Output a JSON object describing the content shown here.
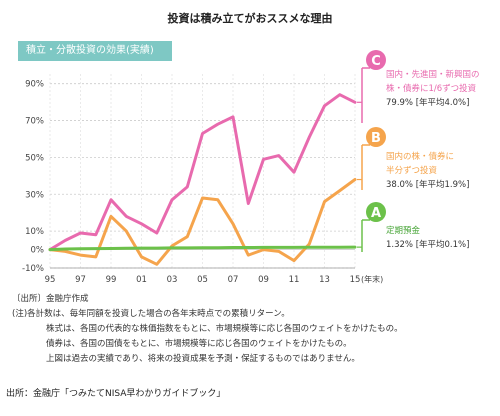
{
  "page_title": "投資は積み立てがおススメな理由",
  "chart_header": "積立・分散投資の効果(実績)",
  "chart_data": {
    "type": "line",
    "x": [
      1995,
      1996,
      1997,
      1998,
      1999,
      2000,
      2001,
      2002,
      2003,
      2004,
      2005,
      2006,
      2007,
      2008,
      2009,
      2010,
      2011,
      2012,
      2013,
      2014,
      2015
    ],
    "xtick_labels": [
      "95",
      "97",
      "99",
      "01",
      "03",
      "05",
      "07",
      "09",
      "11",
      "13",
      "15"
    ],
    "x_unit": "(年末)",
    "ytick_labels": [
      "90%",
      "70%",
      "50%",
      "30%",
      "10%",
      "0%",
      "-10%"
    ],
    "ylim": [
      -10,
      92
    ],
    "series": [
      {
        "key": "C",
        "color": "#e86aae",
        "values": [
          0,
          5,
          9,
          8,
          27,
          18,
          14,
          9,
          27,
          34,
          63,
          68,
          72,
          25,
          49,
          51,
          42,
          61,
          78,
          84,
          79.9
        ]
      },
      {
        "key": "B",
        "color": "#f5a44c",
        "values": [
          0,
          -1,
          -3,
          -4,
          18,
          10,
          -4,
          -8,
          2,
          7,
          28,
          27,
          14,
          -3,
          0,
          -1,
          -6,
          3,
          26,
          32,
          38.0
        ]
      },
      {
        "key": "A",
        "color": "#6cc14a",
        "values": [
          0,
          0.3,
          0.4,
          0.5,
          0.6,
          0.7,
          0.8,
          0.8,
          0.9,
          0.9,
          1.0,
          1.0,
          1.1,
          1.1,
          1.2,
          1.2,
          1.2,
          1.3,
          1.3,
          1.3,
          1.32
        ]
      }
    ]
  },
  "callouts": [
    {
      "key": "C",
      "line1": "国内・先進国・新興国の",
      "line2": "株・債券に1/6ずつ投資",
      "value": "79.9% [年平均4.0%]"
    },
    {
      "key": "B",
      "line1": "国内の株・債券に",
      "line2": "半分ずつ投資",
      "value": "38.0% [年平均1.9%]"
    },
    {
      "key": "A",
      "line1": "定期預金",
      "line2": "",
      "value": "1.32% [年平均0.1%]"
    }
  ],
  "notes": {
    "line1": "〔出所〕金融庁作成",
    "line2": "(注)各計数は、毎年同額を投資した場合の各年末時点での累積リターン。",
    "line3": "株式は、各国の代表的な株価指数をもとに、市場規模等に応じ各国のウェイトをかけたもの。",
    "line4": "債券は、各国の国債をもとに、市場規模等に応じ各国のウェイトをかけたもの。",
    "line5": "上図は過去の実績であり、将来の投資成果を予測・保証するものではありません。"
  },
  "source": "出所：金融庁「つみたてNISA早わかりガイドブック」"
}
